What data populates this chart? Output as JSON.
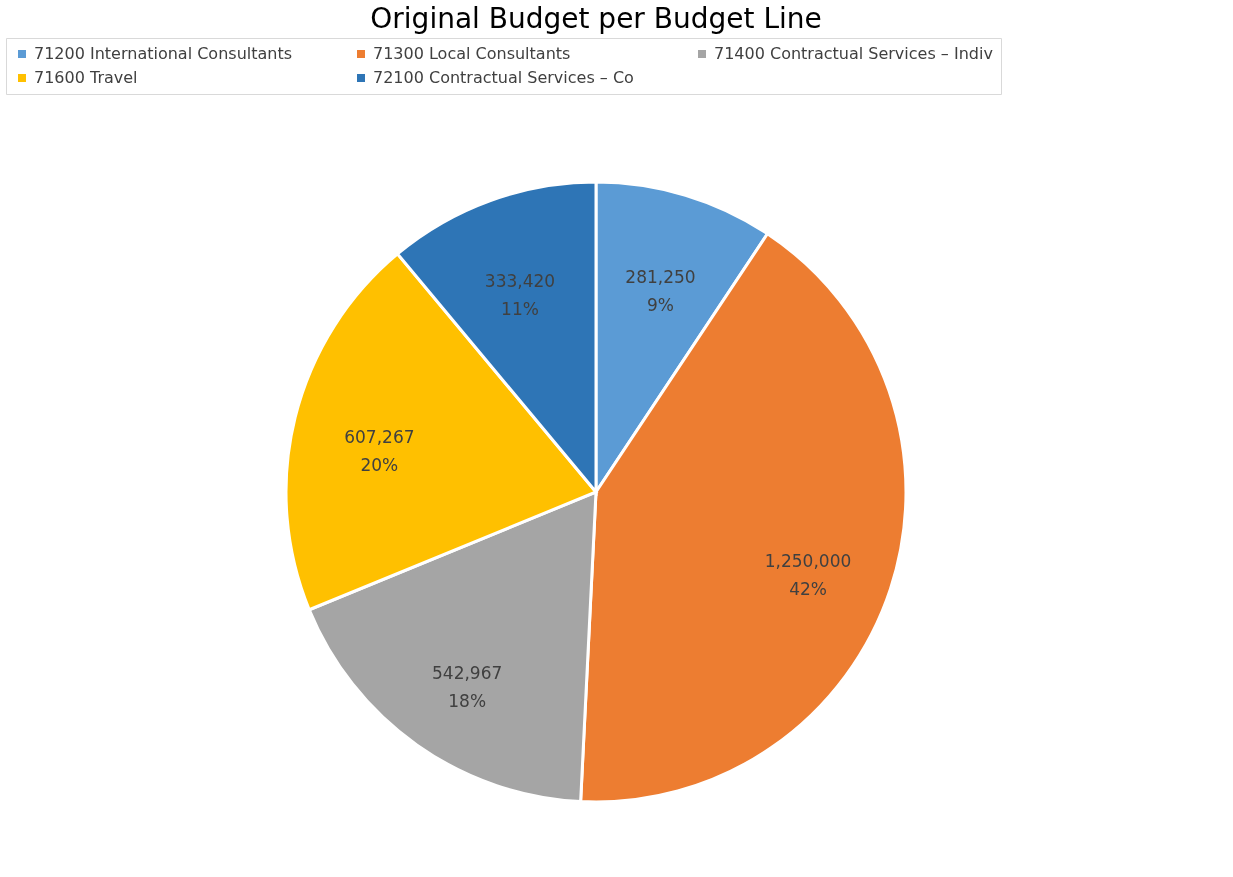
{
  "chart_data": {
    "type": "pie",
    "title": "Original Budget per Budget Line",
    "categories": [
      "71200 International Consultants",
      "71300 Local Consultants",
      "71400 Contractual Services – Indiv",
      "71600 Travel",
      "72100 Contractual Services – Co"
    ],
    "values": [
      281250,
      1250000,
      542967,
      607267,
      333420
    ],
    "colors": [
      "#5b9bd5",
      "#ed7d31",
      "#a5a5a5",
      "#ffc000",
      "#2e75b6"
    ],
    "value_labels": [
      "281,250\n9%",
      "1,250,000\n42%",
      "542,967\n18%",
      "607,267\n20%",
      "333,420\n11%"
    ],
    "legend": "top"
  }
}
